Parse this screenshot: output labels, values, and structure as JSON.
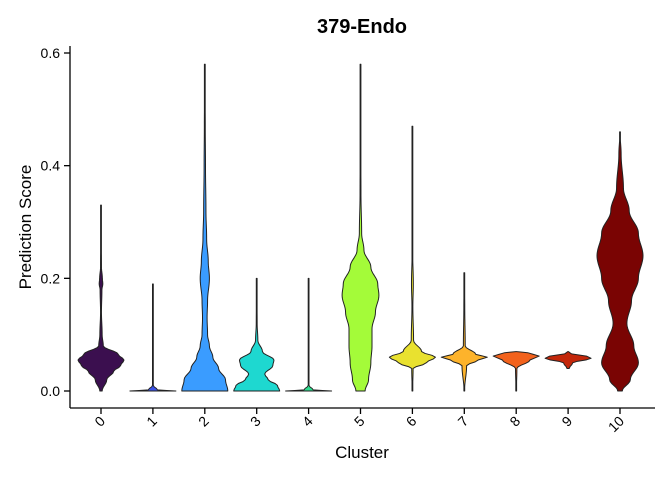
{
  "chart_data": {
    "type": "violin",
    "title": "379-Endo",
    "xlabel": "Cluster",
    "ylabel": "Prediction Score",
    "ylim": [
      0,
      0.6
    ],
    "yticks": [
      "0.0",
      "0.2",
      "0.4",
      "0.6"
    ],
    "grid": false,
    "legend": "none",
    "categories": [
      "0",
      "1",
      "2",
      "3",
      "4",
      "5",
      "6",
      "7",
      "8",
      "9",
      "10"
    ],
    "violins": [
      {
        "cluster": "0",
        "color": "#3b0f4f",
        "min": 0.0,
        "max": 0.33,
        "profile": [
          [
            0.0,
            0.05
          ],
          [
            0.02,
            0.25
          ],
          [
            0.035,
            0.55
          ],
          [
            0.045,
            0.85
          ],
          [
            0.055,
            1.0
          ],
          [
            0.065,
            0.75
          ],
          [
            0.08,
            0.1
          ],
          [
            0.1,
            0.05
          ],
          [
            0.14,
            0.02
          ],
          [
            0.18,
            0.04
          ],
          [
            0.19,
            0.08
          ],
          [
            0.2,
            0.06
          ],
          [
            0.22,
            0.02
          ],
          [
            0.33,
            0.0
          ]
        ]
      },
      {
        "cluster": "1",
        "color": "#3b52e8",
        "min": 0.0,
        "max": 0.19,
        "profile": [
          [
            0.0,
            1.0
          ],
          [
            0.002,
            0.2
          ],
          [
            0.01,
            0.01
          ],
          [
            0.19,
            0.0
          ]
        ]
      },
      {
        "cluster": "2",
        "color": "#3a9cff",
        "min": 0.0,
        "max": 0.58,
        "profile": [
          [
            0.0,
            1.0
          ],
          [
            0.02,
            0.9
          ],
          [
            0.04,
            0.6
          ],
          [
            0.06,
            0.35
          ],
          [
            0.08,
            0.2
          ],
          [
            0.1,
            0.12
          ],
          [
            0.13,
            0.1
          ],
          [
            0.16,
            0.12
          ],
          [
            0.2,
            0.2
          ],
          [
            0.23,
            0.15
          ],
          [
            0.27,
            0.08
          ],
          [
            0.32,
            0.05
          ],
          [
            0.4,
            0.03
          ],
          [
            0.47,
            0.02
          ],
          [
            0.58,
            0.0
          ]
        ]
      },
      {
        "cluster": "3",
        "color": "#1ed8d0",
        "min": 0.0,
        "max": 0.2,
        "profile": [
          [
            0.0,
            1.0
          ],
          [
            0.01,
            0.9
          ],
          [
            0.02,
            0.5
          ],
          [
            0.03,
            0.35
          ],
          [
            0.045,
            0.7
          ],
          [
            0.055,
            0.75
          ],
          [
            0.07,
            0.25
          ],
          [
            0.09,
            0.05
          ],
          [
            0.12,
            0.02
          ],
          [
            0.2,
            0.0
          ]
        ]
      },
      {
        "cluster": "4",
        "color": "#2ddc8e",
        "min": 0.0,
        "max": 0.2,
        "profile": [
          [
            0.0,
            1.0
          ],
          [
            0.002,
            0.2
          ],
          [
            0.01,
            0.01
          ],
          [
            0.2,
            0.0
          ]
        ]
      },
      {
        "cluster": "5",
        "color": "#a4fb39",
        "min": 0.0,
        "max": 0.58,
        "profile": [
          [
            0.0,
            0.2
          ],
          [
            0.02,
            0.35
          ],
          [
            0.05,
            0.45
          ],
          [
            0.08,
            0.5
          ],
          [
            0.11,
            0.5
          ],
          [
            0.14,
            0.65
          ],
          [
            0.17,
            0.8
          ],
          [
            0.19,
            0.75
          ],
          [
            0.22,
            0.45
          ],
          [
            0.25,
            0.15
          ],
          [
            0.28,
            0.05
          ],
          [
            0.35,
            0.02
          ],
          [
            0.45,
            0.01
          ],
          [
            0.58,
            0.0
          ]
        ]
      },
      {
        "cluster": "6",
        "color": "#e9e12f",
        "min": 0.0,
        "max": 0.47,
        "profile": [
          [
            0.0,
            0.01
          ],
          [
            0.04,
            0.03
          ],
          [
            0.05,
            0.6
          ],
          [
            0.06,
            1.0
          ],
          [
            0.07,
            0.4
          ],
          [
            0.09,
            0.05
          ],
          [
            0.15,
            0.02
          ],
          [
            0.19,
            0.04
          ],
          [
            0.25,
            0.01
          ],
          [
            0.47,
            0.0
          ]
        ]
      },
      {
        "cluster": "7",
        "color": "#fdb32b",
        "min": 0.0,
        "max": 0.21,
        "profile": [
          [
            0.0,
            0.01
          ],
          [
            0.045,
            0.1
          ],
          [
            0.055,
            0.6
          ],
          [
            0.06,
            1.0
          ],
          [
            0.065,
            0.5
          ],
          [
            0.08,
            0.04
          ],
          [
            0.15,
            0.02
          ],
          [
            0.21,
            0.0
          ]
        ]
      },
      {
        "cluster": "8",
        "color": "#f2621c",
        "min": 0.0,
        "max": 0.07,
        "profile": [
          [
            0.0,
            0.01
          ],
          [
            0.04,
            0.03
          ],
          [
            0.055,
            0.6
          ],
          [
            0.062,
            1.0
          ],
          [
            0.068,
            0.5
          ],
          [
            0.07,
            0.0
          ]
        ]
      },
      {
        "cluster": "9",
        "color": "#c3270a",
        "min": 0.04,
        "max": 0.07,
        "profile": [
          [
            0.04,
            0.05
          ],
          [
            0.05,
            0.2
          ],
          [
            0.058,
            1.0
          ],
          [
            0.062,
            0.8
          ],
          [
            0.066,
            0.15
          ],
          [
            0.07,
            0.0
          ]
        ]
      },
      {
        "cluster": "10",
        "color": "#7a0403",
        "min": 0.0,
        "max": 0.46,
        "profile": [
          [
            0.0,
            0.1
          ],
          [
            0.02,
            0.45
          ],
          [
            0.05,
            0.8
          ],
          [
            0.08,
            0.6
          ],
          [
            0.12,
            0.3
          ],
          [
            0.16,
            0.5
          ],
          [
            0.2,
            0.8
          ],
          [
            0.24,
            1.0
          ],
          [
            0.28,
            0.8
          ],
          [
            0.32,
            0.4
          ],
          [
            0.36,
            0.15
          ],
          [
            0.42,
            0.05
          ],
          [
            0.46,
            0.0
          ]
        ]
      }
    ]
  }
}
